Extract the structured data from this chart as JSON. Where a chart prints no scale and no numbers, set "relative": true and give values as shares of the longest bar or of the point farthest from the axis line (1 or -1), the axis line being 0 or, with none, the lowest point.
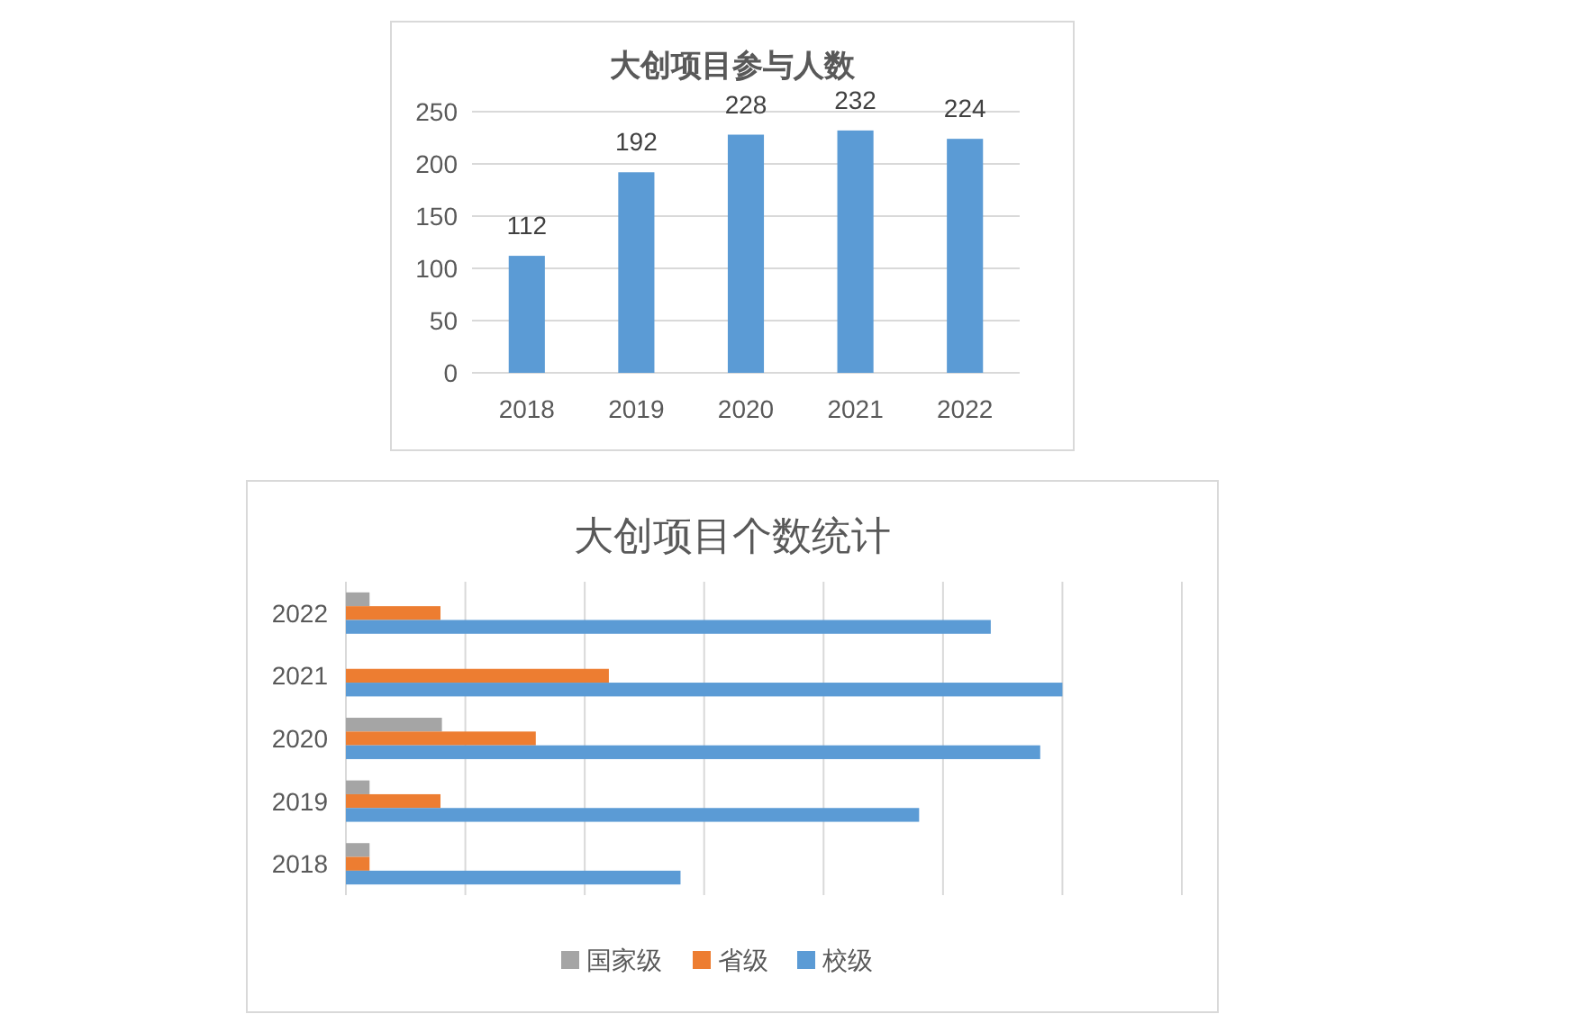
{
  "chart_data": [
    {
      "type": "bar",
      "title": "大创项目参与人数",
      "categories": [
        "2018",
        "2019",
        "2020",
        "2021",
        "2022"
      ],
      "values": [
        112,
        192,
        228,
        232,
        224
      ],
      "color": "#5b9bd5",
      "ylim": [
        0,
        250
      ],
      "yticks": [
        0,
        50,
        100,
        150,
        200,
        250
      ],
      "grid": "y",
      "data_labels": true
    },
    {
      "type": "bar",
      "orientation": "horizontal",
      "relative": true,
      "title": "大创项目个数统计",
      "categories": [
        "2022",
        "2021",
        "2020",
        "2019",
        "2018"
      ],
      "grid": "x",
      "legend": "bottom",
      "series": [
        {
          "name": "国家级",
          "color": "#a5a5a5",
          "values": [
            0.033,
            0,
            0.134,
            0.033,
            0.033
          ]
        },
        {
          "name": "省级",
          "color": "#ed7d31",
          "values": [
            0.132,
            0.367,
            0.265,
            0.132,
            0.033
          ]
        },
        {
          "name": "校级",
          "color": "#5b9bd5",
          "values": [
            0.9,
            1,
            0.969,
            0.8,
            0.467
          ]
        }
      ]
    }
  ]
}
